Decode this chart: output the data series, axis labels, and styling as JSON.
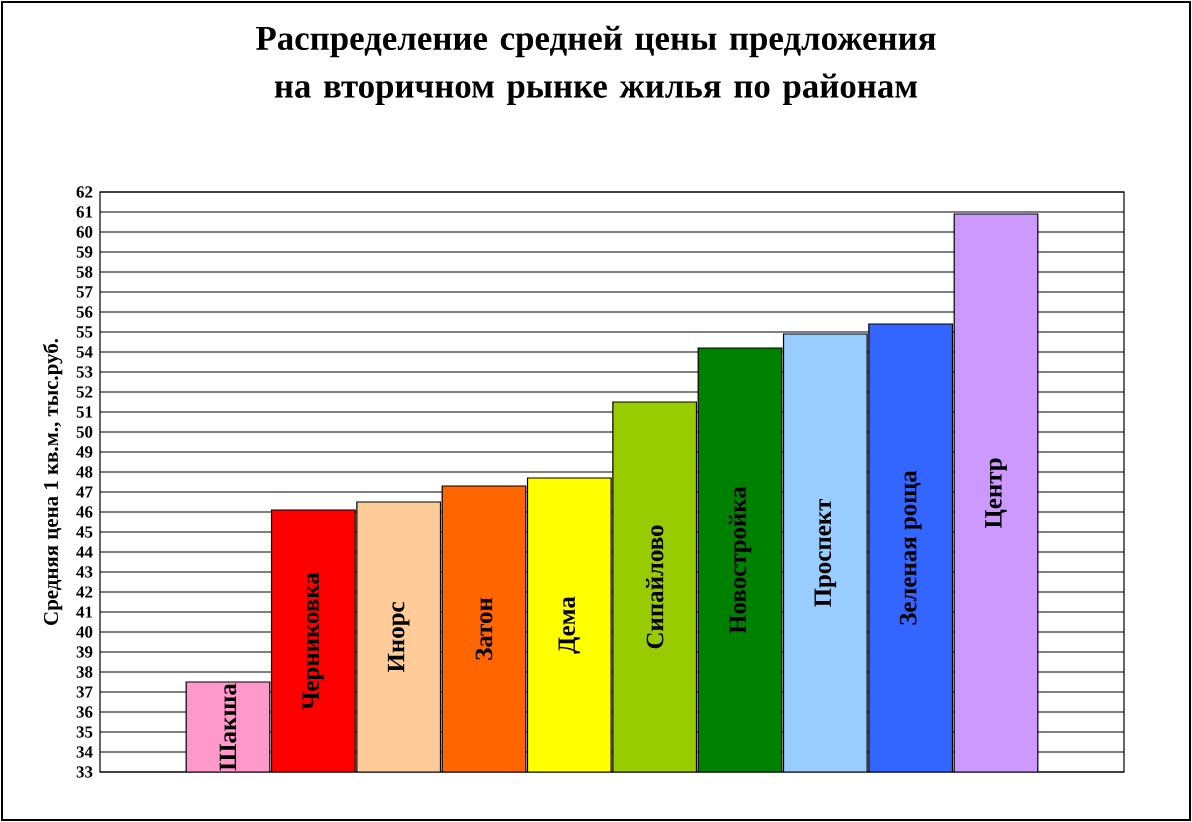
{
  "chart_data": {
    "type": "bar",
    "title": "Распределение средней цены предложения на вторичном рынке жилья по районам",
    "ylabel": "Средняя цена 1 кв.м., тыс.руб.",
    "categories": [
      "Шакша",
      "Черниковка",
      "Инорс",
      "Затон",
      "Дема",
      "Сипайлово",
      "Новостройка",
      "Проспект",
      "Зеленая роща",
      "Центр"
    ],
    "values": [
      37.5,
      46.1,
      46.5,
      47.3,
      47.7,
      51.5,
      54.2,
      54.9,
      55.4,
      60.9
    ],
    "colors": [
      "#ff99cc",
      "#ff0000",
      "#ffcc99",
      "#ff6600",
      "#ffff00",
      "#99cc00",
      "#008000",
      "#99ccff",
      "#3366ff",
      "#cc99ff"
    ],
    "ylim": [
      33,
      62
    ],
    "yticks": [
      33,
      34,
      35,
      36,
      37,
      38,
      39,
      40,
      41,
      42,
      43,
      44,
      45,
      46,
      47,
      48,
      49,
      50,
      51,
      52,
      53,
      54,
      55,
      56,
      57,
      58,
      59,
      60,
      61,
      62
    ],
    "grid": "y"
  }
}
